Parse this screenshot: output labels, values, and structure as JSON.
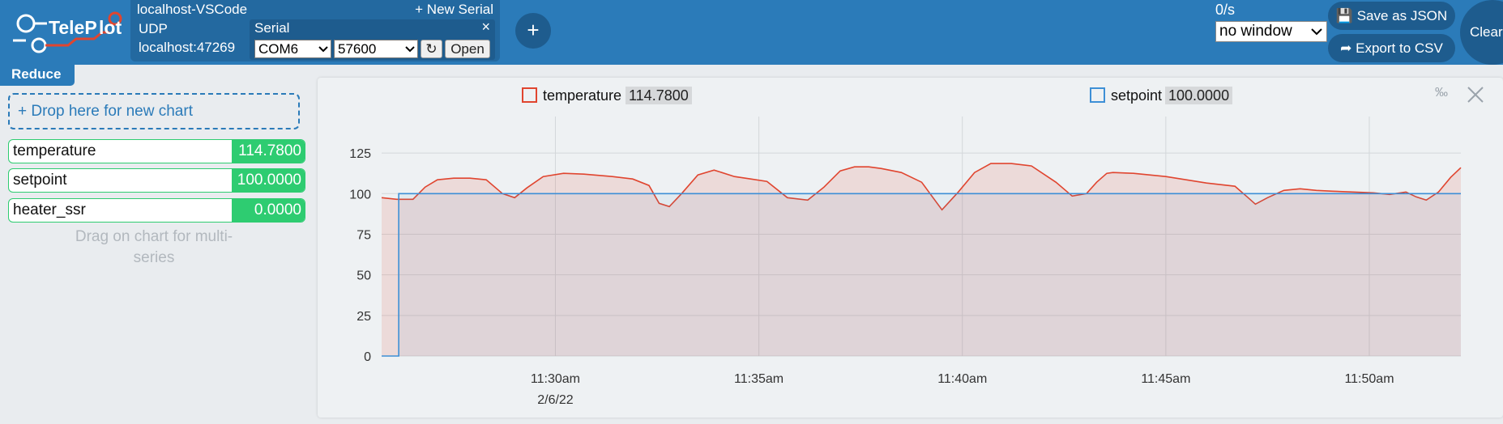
{
  "app": {
    "logo_text": "TeleP"
  },
  "connection": {
    "title": "localhost-VSCode",
    "new_serial_label": "+ New Serial",
    "udp": {
      "label": "UDP",
      "address": "localhost:47269"
    },
    "serial": {
      "title": "Serial",
      "close_label": "×",
      "port": "COM6",
      "baud": "57600",
      "refresh_label": "↻",
      "open_label": "Open"
    }
  },
  "add_connection_label": "+",
  "rate": "0/s",
  "window_select": "no window",
  "save_json_label": "Save as JSON",
  "export_csv_label": "Export to CSV",
  "clear_label": "Clear",
  "reduce_label": "Reduce",
  "drop_zone_label": "+ Drop here for new chart",
  "variables": [
    {
      "name": "temperature",
      "value": "114.7800"
    },
    {
      "name": "setpoint",
      "value": "100.0000"
    },
    {
      "name": "heater_ssr",
      "value": "0.0000"
    }
  ],
  "drag_hint": "Drag on chart for multi-series",
  "permille_label": "‰",
  "colors": {
    "topbar": "#2b7bb9",
    "accent_green": "#2ecc71",
    "temperature": "#e0452f",
    "setpoint": "#3d8fd6"
  },
  "chart_data": {
    "type": "area",
    "legend": [
      {
        "name": "temperature",
        "value": "114.7800"
      },
      {
        "name": "setpoint",
        "value": "100.0000"
      }
    ],
    "y_ticks": [
      "0",
      "25",
      "50",
      "75",
      "100",
      "125"
    ],
    "x_ticks": [
      "11:30am",
      "11:35am",
      "11:40am",
      "11:45am",
      "11:50am"
    ],
    "x_date_label": "2/6/22",
    "ylim": [
      0,
      137.5
    ],
    "x_unit": "minutes after 11:00am",
    "xlim": [
      25.73,
      52.25
    ],
    "grid": true,
    "series": [
      {
        "name": "temperature",
        "x": [
          25.73,
          26.1,
          26.5,
          26.8,
          27.1,
          27.5,
          27.9,
          28.3,
          28.7,
          29.0,
          29.3,
          29.7,
          30.2,
          30.7,
          31.4,
          31.9,
          32.3,
          32.55,
          32.8,
          33.1,
          33.5,
          33.9,
          34.4,
          34.8,
          35.2,
          35.7,
          36.2,
          36.6,
          37.0,
          37.35,
          37.7,
          38.0,
          38.5,
          39.0,
          39.5,
          39.9,
          40.3,
          40.7,
          41.2,
          41.7,
          42.3,
          42.7,
          43.05,
          43.3,
          43.55,
          43.7,
          44.2,
          45.0,
          46.0,
          46.7,
          47.0,
          47.2,
          47.5,
          47.9,
          48.3,
          48.7,
          49.1,
          49.6,
          50.1,
          50.5,
          50.9,
          51.15,
          51.4,
          51.7,
          52.0,
          52.25
        ],
        "values": [
          97.5,
          96.5,
          96.5,
          104,
          108.5,
          109.5,
          109.5,
          108.5,
          100,
          97.5,
          103.5,
          110.5,
          112.5,
          112,
          110.5,
          109,
          105,
          94,
          92,
          100,
          111.5,
          114.5,
          110.5,
          109,
          107.5,
          97.5,
          96,
          104,
          114,
          116.5,
          116.5,
          115.5,
          113,
          107,
          90,
          101,
          113,
          118.5,
          118.5,
          117,
          107,
          98.5,
          100,
          107,
          112.5,
          113,
          112.5,
          110.5,
          106.5,
          104.5,
          98,
          93.5,
          97.5,
          102,
          103,
          102,
          101.5,
          101,
          100.5,
          99.5,
          101,
          98,
          96,
          101,
          110,
          116
        ],
        "color": "#e0452f"
      },
      {
        "name": "setpoint",
        "x": [
          25.73,
          26.15,
          26.15,
          26.16,
          52.25
        ],
        "values": [
          0,
          0,
          100,
          100,
          100
        ],
        "color": "#3d8fd6"
      }
    ]
  }
}
